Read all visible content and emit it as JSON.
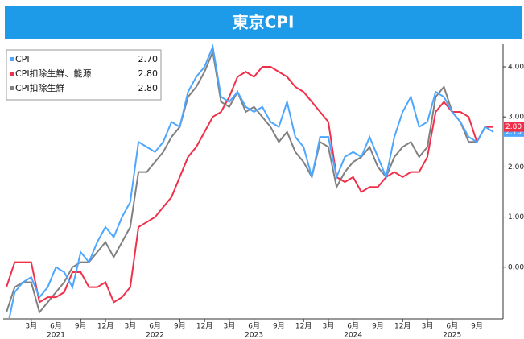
{
  "chart_data": {
    "type": "line",
    "title": "東京CPI",
    "categories": [
      null,
      null,
      null,
      "3月",
      null,
      null,
      "6月",
      null,
      null,
      "9月",
      null,
      null,
      "12月",
      null,
      null,
      "3月",
      null,
      null,
      "6月",
      null,
      null,
      "9月",
      null,
      null,
      "12月",
      null,
      null,
      "3月",
      null,
      null,
      "6月",
      null,
      null,
      "9月",
      null,
      null,
      "12月",
      null,
      null,
      "3月",
      null,
      null,
      "6月",
      null,
      null,
      "9月",
      null,
      null,
      "12月",
      null,
      null,
      "3月",
      null,
      null,
      "6月",
      null,
      null,
      "9月",
      null,
      null
    ],
    "years": [
      "2021",
      "2022",
      "2023",
      "2024",
      "2025"
    ],
    "series": [
      {
        "name": "CPI",
        "color": "#4da6ff",
        "last_label": "2.70",
        "end_tag": true,
        "values": [
          -1.3,
          -0.5,
          -0.3,
          -0.2,
          -0.6,
          -0.4,
          0.0,
          -0.1,
          -0.4,
          0.3,
          0.1,
          0.5,
          0.8,
          0.6,
          1.0,
          1.3,
          2.5,
          2.4,
          2.3,
          2.5,
          2.9,
          2.8,
          3.5,
          3.8,
          4.0,
          4.4,
          3.4,
          3.3,
          3.5,
          3.2,
          3.1,
          3.2,
          2.9,
          2.8,
          3.3,
          2.6,
          2.4,
          1.8,
          2.6,
          2.6,
          1.8,
          2.2,
          2.3,
          2.2,
          2.6,
          2.2,
          1.8,
          2.6,
          3.1,
          3.4,
          2.8,
          2.9,
          3.5,
          3.4,
          3.1,
          2.9,
          2.6,
          2.5,
          2.8,
          2.7
        ]
      },
      {
        "name": "CPI扣除生鮮、能源",
        "color": "#f0304a",
        "last_label": "2.80",
        "end_tag": true,
        "values": [
          -0.4,
          0.1,
          0.1,
          0.1,
          -0.7,
          -0.6,
          -0.6,
          -0.5,
          -0.1,
          -0.1,
          -0.4,
          -0.4,
          -0.3,
          -0.7,
          -0.6,
          -0.4,
          0.8,
          0.9,
          1.0,
          1.2,
          1.4,
          1.8,
          2.2,
          2.4,
          2.7,
          3.0,
          3.1,
          3.4,
          3.8,
          3.9,
          3.8,
          4.0,
          4.0,
          3.9,
          3.8,
          3.6,
          3.5,
          3.3,
          3.1,
          2.9,
          1.8,
          1.7,
          1.8,
          1.5,
          1.6,
          1.6,
          1.8,
          1.9,
          1.8,
          1.9,
          1.9,
          2.2,
          3.1,
          3.3,
          3.1,
          3.1,
          3.0,
          2.5,
          2.8,
          2.8
        ]
      },
      {
        "name": "CPI扣除生鮮",
        "color": "#808080",
        "last_label": "2.80",
        "end_tag": false,
        "values": [
          -0.9,
          -0.4,
          -0.3,
          -0.3,
          -0.9,
          -0.7,
          -0.5,
          -0.3,
          0.0,
          0.1,
          0.1,
          0.3,
          0.5,
          0.2,
          0.5,
          0.8,
          1.9,
          1.9,
          2.1,
          2.3,
          2.6,
          2.8,
          3.4,
          3.6,
          3.9,
          4.3,
          3.3,
          3.2,
          3.5,
          3.1,
          3.2,
          3.0,
          2.8,
          2.5,
          2.7,
          2.3,
          2.1,
          1.8,
          2.5,
          2.4,
          1.6,
          1.9,
          2.1,
          2.2,
          2.4,
          2.0,
          1.8,
          2.2,
          2.4,
          2.5,
          2.2,
          2.4,
          3.4,
          3.6,
          3.1,
          2.9,
          2.5,
          2.5,
          2.8,
          2.8
        ]
      }
    ],
    "ylim": [
      -1.0,
      4.45
    ],
    "yticks": [
      {
        "value": 0,
        "label": "0.00"
      },
      {
        "value": 1,
        "label": "1.00"
      },
      {
        "value": 2,
        "label": "2.00"
      },
      {
        "value": 3,
        "label": "3.00"
      },
      {
        "value": 4,
        "label": "4.00"
      }
    ],
    "grid": false
  }
}
